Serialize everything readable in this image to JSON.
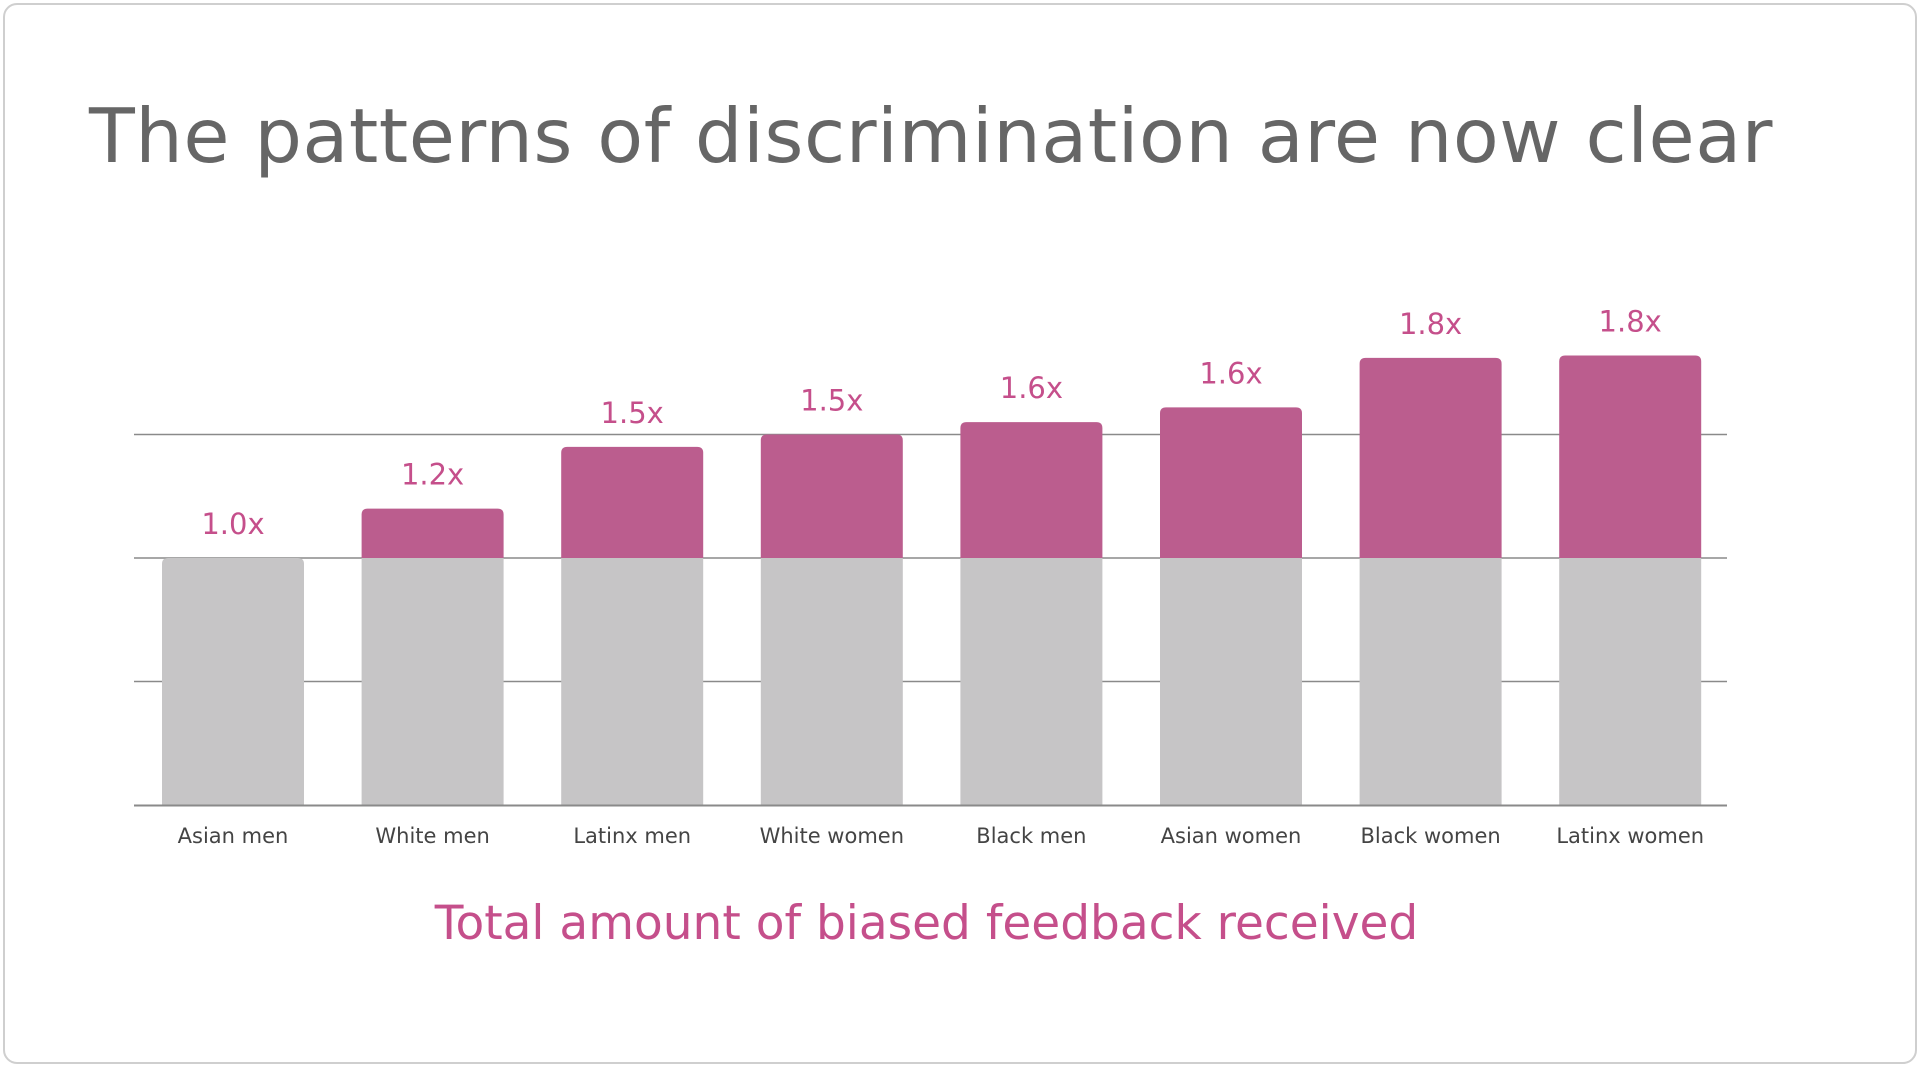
{
  "slide": {
    "title": "The patterns of discrimination are now clear",
    "caption": "Total amount of biased feedback received"
  },
  "colors": {
    "base": "#c6c5c6",
    "excess": "#bb5d8e",
    "label": "#c54f8b",
    "axis": "#8a8a8a",
    "tick": "#444444"
  },
  "chart_data": {
    "type": "bar",
    "stacked": true,
    "categories": [
      "Asian men",
      "White men",
      "Latinx men",
      "White women",
      "Black men",
      "Asian women",
      "Black women",
      "Latinx women"
    ],
    "data_labels": [
      "1.0x",
      "1.2x",
      "1.5x",
      "1.5x",
      "1.6x",
      "1.6x",
      "1.8x",
      "1.8x"
    ],
    "values": [
      1.0,
      1.2,
      1.5,
      1.5,
      1.6,
      1.6,
      1.8,
      1.8
    ],
    "series": [
      {
        "values": [
          1.0,
          1.0,
          1.0,
          1.0,
          1.0,
          1.0,
          1.0,
          1.0
        ]
      },
      {
        "values": [
          0.0,
          0.2,
          0.45,
          0.5,
          0.55,
          0.61,
          0.81,
          0.82
        ]
      }
    ],
    "ylim": [
      0,
      2
    ],
    "gridlines": [
      0.5,
      1.0,
      1.5
    ],
    "grid": true,
    "legend": "none"
  }
}
